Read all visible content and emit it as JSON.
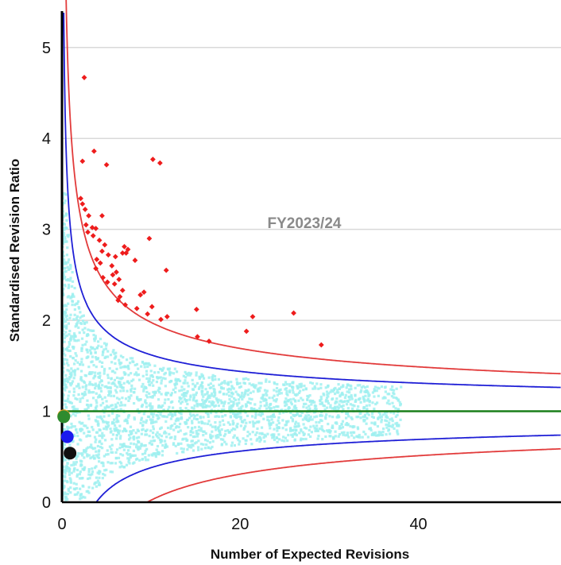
{
  "chart_data": {
    "type": "scatter",
    "title": "",
    "xlabel": "Number of Expected Revisions",
    "ylabel": "Standardised Revision Ratio",
    "annotation": "FY2023/24",
    "xlim": [
      0,
      56
    ],
    "ylim": [
      0,
      5.4
    ],
    "x_ticks": [
      0,
      20,
      40
    ],
    "y_ticks": [
      0,
      1,
      2,
      3,
      4,
      5
    ],
    "grid": "horizontal",
    "colors": {
      "gridline": "#d9d9d9",
      "axis": "#000000",
      "reference_line": "#1a7f1a",
      "limit_95": "#1f1fd6",
      "limit_998": "#e23b3b",
      "outliers": "#ee1c1c",
      "background_points": "#9ff0f0"
    },
    "reference_line_y": 1,
    "limit_lines": [
      {
        "name": "inner",
        "color": "#1f1fd6",
        "z": 1.96
      },
      {
        "name": "outer",
        "color": "#e23b3b",
        "z": 3.09
      }
    ],
    "series": [
      {
        "role": "outliers",
        "color": "#ee1c1c",
        "points": [
          [
            2.5,
            4.67
          ],
          [
            3.6,
            3.86
          ],
          [
            10.2,
            3.77
          ],
          [
            11.0,
            3.73
          ],
          [
            2.3,
            3.75
          ],
          [
            5.0,
            3.71
          ],
          [
            2.1,
            3.34
          ],
          [
            2.3,
            3.28
          ],
          [
            2.6,
            3.22
          ],
          [
            3.0,
            3.15
          ],
          [
            4.5,
            3.15
          ],
          [
            2.7,
            3.05
          ],
          [
            3.4,
            3.02
          ],
          [
            3.8,
            3.01
          ],
          [
            2.9,
            2.97
          ],
          [
            3.5,
            2.93
          ],
          [
            4.2,
            2.88
          ],
          [
            9.8,
            2.9
          ],
          [
            4.8,
            2.83
          ],
          [
            7.0,
            2.81
          ],
          [
            7.4,
            2.78
          ],
          [
            4.5,
            2.76
          ],
          [
            6.8,
            2.74
          ],
          [
            7.2,
            2.74
          ],
          [
            5.2,
            2.72
          ],
          [
            6.0,
            2.7
          ],
          [
            3.9,
            2.67
          ],
          [
            8.2,
            2.66
          ],
          [
            4.3,
            2.63
          ],
          [
            5.6,
            2.6
          ],
          [
            3.8,
            2.57
          ],
          [
            11.7,
            2.55
          ],
          [
            6.1,
            2.53
          ],
          [
            5.7,
            2.5
          ],
          [
            4.6,
            2.47
          ],
          [
            6.4,
            2.45
          ],
          [
            5.1,
            2.42
          ],
          [
            5.9,
            2.4
          ],
          [
            6.8,
            2.33
          ],
          [
            9.2,
            2.31
          ],
          [
            8.8,
            2.28
          ],
          [
            6.5,
            2.26
          ],
          [
            6.3,
            2.22
          ],
          [
            7.1,
            2.17
          ],
          [
            8.4,
            2.13
          ],
          [
            10.1,
            2.15
          ],
          [
            15.1,
            2.12
          ],
          [
            26.0,
            2.08
          ],
          [
            9.6,
            2.07
          ],
          [
            21.4,
            2.04
          ],
          [
            11.8,
            2.04
          ],
          [
            11.1,
            2.01
          ],
          [
            20.7,
            1.88
          ],
          [
            15.2,
            1.82
          ],
          [
            16.5,
            1.77
          ],
          [
            29.1,
            1.73
          ]
        ]
      },
      {
        "role": "highlighted",
        "points": [
          {
            "x": 0.2,
            "y": 0.95,
            "color": "#f0a020"
          },
          {
            "x": 0.2,
            "y": 0.94,
            "color": "#2e8b2e"
          },
          {
            "x": 0.6,
            "y": 0.72,
            "color": "#1a1aee"
          },
          {
            "x": 0.9,
            "y": 0.54,
            "color": "#111111"
          }
        ]
      }
    ]
  }
}
